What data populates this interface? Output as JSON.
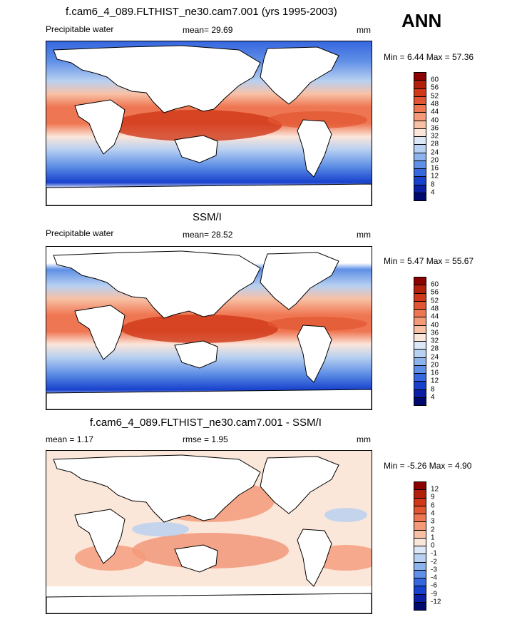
{
  "header": {
    "season": "ANN"
  },
  "panels": [
    {
      "id": "model",
      "title": "f.cam6_4_089.FLTHIST_ne30.cam7.001 (yrs 1995-2003)",
      "left_label": "Precipitable water",
      "mid_label": "mean=  29.69",
      "units": "mm",
      "minmax": "Min =   6.44 Max =  57.36",
      "colorbar": {
        "labels": [
          "60",
          "56",
          "52",
          "48",
          "44",
          "40",
          "36",
          "32",
          "28",
          "24",
          "20",
          "16",
          "12",
          "8",
          "4"
        ],
        "colors": [
          "#8b0000",
          "#b0200b",
          "#cf3818",
          "#e25532",
          "#ef7652",
          "#f59a79",
          "#f8c1a6",
          "#fbe6da",
          "#dde8f6",
          "#b8d0f1",
          "#8db3ec",
          "#5f8fe6",
          "#3767df",
          "#1741cd",
          "#0a1fa3",
          "#000a6e"
        ]
      }
    },
    {
      "id": "obs",
      "title": "SSM/I",
      "left_label": "Precipitable water",
      "mid_label": "mean=  28.52",
      "units": "mm",
      "minmax": "Min =   5.47 Max =  55.67",
      "colorbar": {
        "labels": [
          "60",
          "56",
          "52",
          "48",
          "44",
          "40",
          "36",
          "32",
          "28",
          "24",
          "20",
          "16",
          "12",
          "8",
          "4"
        ],
        "colors": [
          "#8b0000",
          "#b0200b",
          "#cf3818",
          "#e25532",
          "#ef7652",
          "#f59a79",
          "#f8c1a6",
          "#fbe6da",
          "#dde8f6",
          "#b8d0f1",
          "#8db3ec",
          "#5f8fe6",
          "#3767df",
          "#1741cd",
          "#0a1fa3",
          "#000a6e"
        ]
      }
    },
    {
      "id": "diff",
      "title": "f.cam6_4_089.FLTHIST_ne30.cam7.001 - SSM/I",
      "left_label": "mean =   1.17",
      "mid_label": "rmse =   1.95",
      "units": "mm",
      "minmax": "Min =  -5.26 Max =   4.90",
      "colorbar": {
        "labels": [
          "12",
          "9",
          "6",
          "4",
          "3",
          "2",
          "1",
          "0",
          "-1",
          "-2",
          "-3",
          "-4",
          "-6",
          "-9",
          "-12"
        ],
        "colors": [
          "#8b0000",
          "#b0200b",
          "#cf3818",
          "#e25532",
          "#ef7652",
          "#f59a79",
          "#f8c1a6",
          "#fbe6da",
          "#dde8f6",
          "#b8d0f1",
          "#8db3ec",
          "#5f8fe6",
          "#3767df",
          "#1741cd",
          "#0a1fa3",
          "#000a6e"
        ]
      }
    }
  ]
}
